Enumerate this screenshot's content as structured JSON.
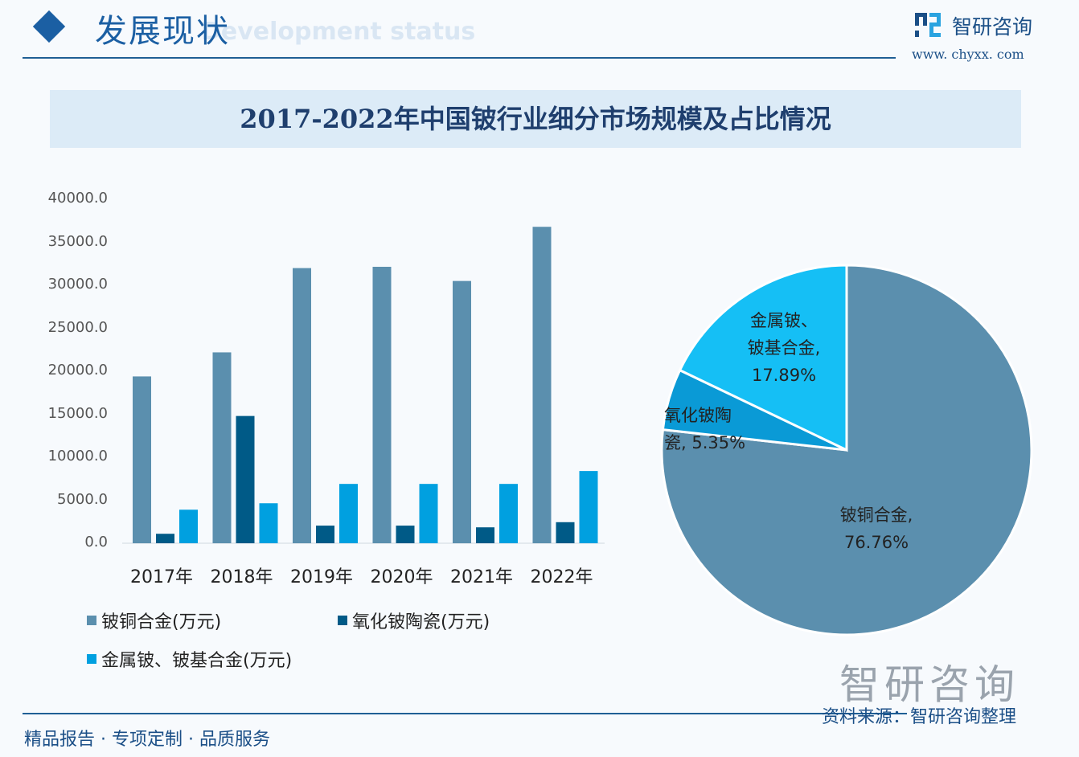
{
  "header": {
    "section_title": "发展现状",
    "section_subtitle": "Development status",
    "brand_name": "智研咨询",
    "brand_url": "www. chyxx. com"
  },
  "footer": {
    "slogan": "精品报告 · 专项定制 · 品质服务",
    "source": "资料来源：智研咨询整理",
    "logo_text": "智研咨询"
  },
  "colors": {
    "series1": "#5b8fae",
    "series2": "#005a87",
    "series3": "#00a0e0",
    "pie3": "#15bff5",
    "pie2": "#0a9ad6",
    "accent": "#1b5fa3"
  },
  "chart_data": [
    {
      "type": "bar",
      "title": "2017-2022年中国铍行业细分市场规模及占比情况",
      "categories": [
        "2017年",
        "2018年",
        "2019年",
        "2020年",
        "2021年",
        "2022年"
      ],
      "yticks": [
        "0.0",
        "5000.0",
        "10000.0",
        "15000.0",
        "20000.0",
        "25000.0",
        "30000.0",
        "35000.0",
        "40000.0"
      ],
      "ylim": [
        0,
        40000
      ],
      "grid": false,
      "legend_position": "bottom",
      "series": [
        {
          "name": "铍铜合金(万元)",
          "values": [
            19400,
            22200,
            32000,
            32150,
            30500,
            36800
          ]
        },
        {
          "name": "氧化铍陶瓷(万元)",
          "values": [
            1100,
            14800,
            2050,
            2050,
            1850,
            2450
          ]
        },
        {
          "name": "金属铍、铍基合金(万元)",
          "values": [
            3900,
            4650,
            6900,
            6900,
            6900,
            8400
          ]
        }
      ]
    },
    {
      "type": "pie",
      "slices": [
        {
          "label": "铍铜合金,",
          "value": 76.76,
          "value_text": "76.76%"
        },
        {
          "label": "氧化铍陶瓷,",
          "value": 5.35,
          "value_text": "5.35%"
        },
        {
          "label": "金属铍、铍基合金,",
          "value": 17.89,
          "value_text": "17.89%"
        }
      ]
    }
  ]
}
